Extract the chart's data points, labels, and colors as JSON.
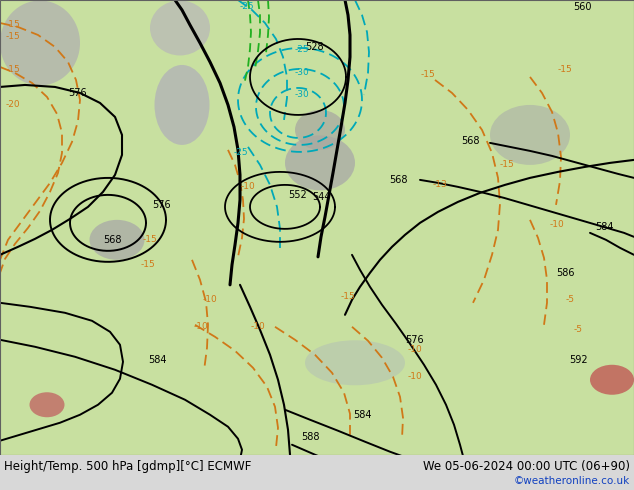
{
  "title_left": "Height/Temp. 500 hPa [gdmp][°C] ECMWF",
  "title_right": "We 05-06-2024 00:00 UTC (06+90)",
  "credit": "©weatheronline.co.uk",
  "map_bg": "#c8e0a0",
  "gray_land": "#a8a8a8",
  "bottom_bar": "#d8d8d8",
  "black": "#000000",
  "orange": "#d07818",
  "cyan": "#00a8b8",
  "green": "#20b020",
  "red_patch": "#c04040",
  "title_fs": 8.5,
  "credit_fs": 7.5,
  "credit_color": "#1040c0"
}
